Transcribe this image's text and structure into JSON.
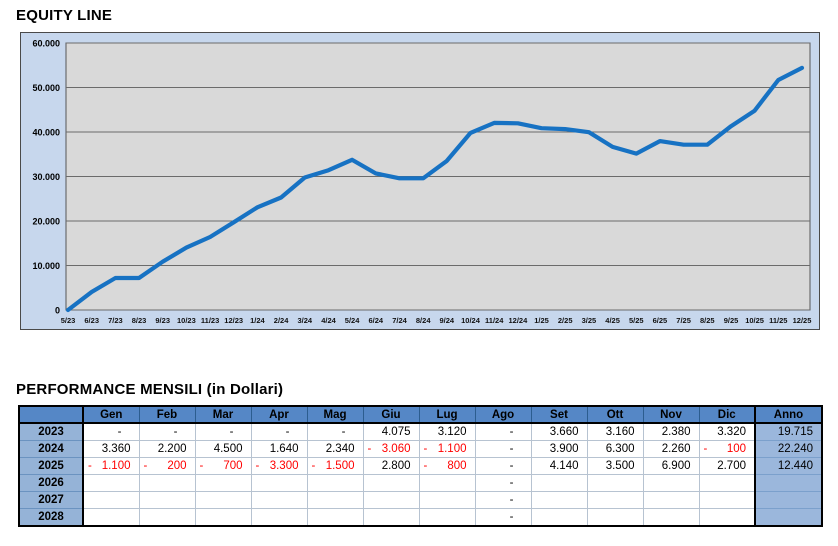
{
  "chart_data": {
    "type": "line",
    "title": "EQUITY LINE",
    "x": [
      "5/23",
      "6/23",
      "7/23",
      "8/23",
      "9/23",
      "10/23",
      "11/23",
      "12/23",
      "1/24",
      "2/24",
      "3/24",
      "4/24",
      "5/24",
      "6/24",
      "7/24",
      "8/24",
      "9/24",
      "10/24",
      "11/24",
      "12/24",
      "1/25",
      "2/25",
      "3/25",
      "4/25",
      "5/25",
      "6/25",
      "7/25",
      "8/25",
      "9/25",
      "10/25",
      "11/25",
      "12/25"
    ],
    "values": [
      0,
      4075,
      7195,
      7195,
      10855,
      14015,
      16395,
      19715,
      23075,
      25275,
      29775,
      31415,
      33755,
      30695,
      29595,
      29595,
      33495,
      39795,
      42055,
      41955,
      40855,
      40655,
      39955,
      36655,
      35155,
      37955,
      37155,
      37155,
      41295,
      44795,
      51695,
      54395
    ],
    "ylim": [
      0,
      60000
    ],
    "yticks": [
      0,
      10000,
      20000,
      30000,
      40000,
      50000,
      60000
    ],
    "ytick_labels": [
      "0",
      "10.000",
      "20.000",
      "30.000",
      "40.000",
      "50.000",
      "60.000"
    ],
    "grid": true,
    "legend": false,
    "line_color": "#1772c3",
    "plot_bg": "#d9d9d9",
    "chart_bg": "#c7d7ed"
  },
  "table": {
    "title": "PERFORMANCE MENSILI (in Dollari)",
    "months": [
      "Gen",
      "Feb",
      "Mar",
      "Apr",
      "Mag",
      "Giu",
      "Lug",
      "Ago",
      "Set",
      "Ott",
      "Nov",
      "Dic"
    ],
    "anno_label": "Anno",
    "rows": [
      {
        "year": "2023",
        "cells": [
          "-",
          "-",
          "-",
          "-",
          "-",
          "4.075",
          "3.120",
          "-",
          "3.660",
          "3.160",
          "2.380",
          "3.320"
        ],
        "anno": "19.715"
      },
      {
        "year": "2024",
        "cells": [
          "3.360",
          "2.200",
          "4.500",
          "1.640",
          "2.340",
          "-3.060",
          "-1.100",
          "-",
          "3.900",
          "6.300",
          "2.260",
          "-100"
        ],
        "anno": "22.240"
      },
      {
        "year": "2025",
        "cells": [
          "-1.100",
          "-200",
          "-700",
          "-3.300",
          "-1.500",
          "2.800",
          "-800",
          "-",
          "4.140",
          "3.500",
          "6.900",
          "2.700"
        ],
        "anno": "12.440"
      },
      {
        "year": "2026",
        "cells": [
          "",
          "",
          "",
          "",
          "",
          "",
          "",
          "-",
          "",
          "",
          "",
          ""
        ],
        "anno": ""
      },
      {
        "year": "2027",
        "cells": [
          "",
          "",
          "",
          "",
          "",
          "",
          "",
          "-",
          "",
          "",
          "",
          ""
        ],
        "anno": ""
      },
      {
        "year": "2028",
        "cells": [
          "",
          "",
          "",
          "",
          "",
          "",
          "",
          "-",
          "",
          "",
          "",
          ""
        ],
        "anno": ""
      }
    ],
    "negative_color": "#ff0000",
    "header_bg": "#5587c6",
    "year_bg": "#95b3d7",
    "anno_bg": "#9bb7dc"
  }
}
